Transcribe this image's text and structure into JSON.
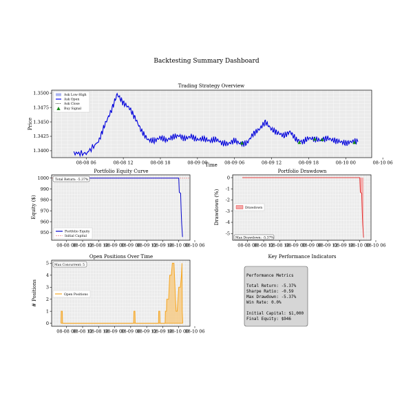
{
  "suptitle": "Backtesting Summary Dashboard",
  "colors": {
    "price": "#0000ee",
    "price_band": "#aab4f0",
    "buy": "#1a8a1a",
    "equity": "#0000cc",
    "initial_capital": "#f0a0a0",
    "drawdown_fill": "#f4a8a8",
    "drawdown_line": "#e02020",
    "positions": "#f5a623",
    "positions_fill": "#f7c77a",
    "grid": "#ffffff",
    "panel_bg": "#ebebeb"
  },
  "chart_data": [
    {
      "id": "price",
      "type": "line",
      "title": "Trading Strategy Overview",
      "xlabel": "Time",
      "ylabel": "Price",
      "ylim": [
        1.3388,
        1.3505
      ],
      "yticks": [
        "1.3400",
        "1.3425",
        "1.3450",
        "1.3475",
        "1.3500"
      ],
      "ytick_values": [
        1.34,
        1.3425,
        1.345,
        1.3475,
        1.35
      ],
      "xticks": [
        "08-08 06",
        "08-08 12",
        "08-08 18",
        "08-09 00",
        "08-09 06",
        "08-09 12",
        "08-09 18",
        "08-10 00",
        "08-10 06"
      ],
      "xlim": [
        4.4,
        56.2
      ],
      "grid": true,
      "legend_position": "upper-left",
      "legend": [
        "Ask Low-High",
        "Ask Open",
        "Ask Close",
        "Buy Signal"
      ],
      "series": [
        {
          "name": "Ask Open",
          "x": [
            8,
            10,
            12,
            13,
            14,
            15,
            16,
            17,
            18,
            19,
            20,
            21,
            22,
            23,
            24,
            25,
            26,
            27,
            28,
            29,
            30,
            31,
            32,
            33,
            34,
            35,
            36,
            37,
            38,
            39,
            40,
            41,
            42,
            43,
            44,
            45,
            46,
            47,
            48,
            49,
            50,
            51,
            52,
            53,
            54
          ],
          "values": [
            1.3396,
            1.3395,
            1.3416,
            1.3445,
            1.3468,
            1.3498,
            1.3483,
            1.3474,
            1.3455,
            1.3433,
            1.3419,
            1.3417,
            1.3423,
            1.3418,
            1.3424,
            1.3426,
            1.3421,
            1.3425,
            1.3419,
            1.3421,
            1.3417,
            1.342,
            1.3413,
            1.3412,
            1.3418,
            1.3412,
            1.3413,
            1.3429,
            1.3437,
            1.345,
            1.3437,
            1.3431,
            1.3426,
            1.3433,
            1.3419,
            1.3415,
            1.3422,
            1.342,
            1.3418,
            1.3422,
            1.3418,
            1.3416,
            1.3413,
            1.3416,
            1.3416
          ]
        }
      ],
      "buy_signals": {
        "x": [
          35.2,
          44.5,
          47.0,
          48.2,
          53.4
        ],
        "values": [
          1.3413,
          1.3414,
          1.342,
          1.3419,
          1.3414
        ]
      }
    },
    {
      "id": "equity",
      "type": "line",
      "title": "Portfolio Equity Curve",
      "xlabel": "",
      "ylabel": "Equity ($)",
      "ylim": [
        943,
        1003
      ],
      "yticks": [
        "950",
        "960",
        "970",
        "980",
        "990",
        "1000"
      ],
      "ytick_values": [
        950,
        960,
        970,
        980,
        990,
        1000
      ],
      "xticks": [
        "08-08 06",
        "08-08 12",
        "08-08 18",
        "08-09 00",
        "08-09 06",
        "08-09 12",
        "08-09 18",
        "08-10 00",
        "08-10 06"
      ],
      "xlim": [
        4.4,
        56.2
      ],
      "annotation": "Total Return: -5.37%",
      "legend_position": "lower-left",
      "legend": [
        "Portfolio Equity",
        "Initial Capital"
      ],
      "initial_capital": 1000,
      "series": [
        {
          "name": "Portfolio Equity",
          "x": [
            8,
            52.0,
            52.2,
            52.7,
            52.9,
            53.1,
            53.4
          ],
          "values": [
            1000,
            1000,
            987,
            986,
            970,
            958,
            946
          ]
        }
      ]
    },
    {
      "id": "drawdown",
      "type": "area",
      "title": "Portfolio Drawdown",
      "xlabel": "",
      "ylabel": "Drawdown (%)",
      "ylim": [
        -5.6,
        0.25
      ],
      "yticks": [
        "0",
        "-1",
        "-2",
        "-3",
        "-4",
        "-5"
      ],
      "ytick_values": [
        0,
        -1,
        -2,
        -3,
        -4,
        -5
      ],
      "xticks": [
        "08-08 06",
        "08-08 12",
        "08-08 18",
        "08-09 00",
        "08-09 06",
        "08-09 12",
        "08-09 18",
        "08-10 00",
        "08-10 06"
      ],
      "xlim": [
        4.4,
        56.2
      ],
      "annotation": "Max Drawdown: -5.37%",
      "legend_position": "center-left",
      "legend": [
        "Drawdown"
      ],
      "series": [
        {
          "name": "Drawdown",
          "x": [
            8,
            52.0,
            52.2,
            52.7,
            52.9,
            53.1,
            53.4
          ],
          "values": [
            0,
            0,
            -1.3,
            -1.4,
            -3.0,
            -4.2,
            -5.37
          ]
        }
      ]
    },
    {
      "id": "positions",
      "type": "area",
      "title": "Open Positions Over Time",
      "xlabel": "",
      "ylabel": "# Positions",
      "ylim": [
        -0.25,
        5.25
      ],
      "yticks": [
        "0",
        "1",
        "2",
        "3",
        "4",
        "5"
      ],
      "ytick_values": [
        0,
        1,
        2,
        3,
        4,
        5
      ],
      "xticks": [
        "08-08 06",
        "08-08 12",
        "08-08 18",
        "08-09 00",
        "08-09 06",
        "08-09 12",
        "08-09 18",
        "08-10 00",
        "08-10 06"
      ],
      "xlim": [
        4.4,
        56.2
      ],
      "annotation": "Max Concurrent: 5",
      "legend_position": "center-left",
      "legend": [
        "Open Positions"
      ],
      "series": [
        {
          "name": "Open Positions",
          "x": [
            7.9,
            8.0,
            8.4,
            8.5,
            35.1,
            35.2,
            35.6,
            35.7,
            44.4,
            44.5,
            44.9,
            45.0,
            46.9,
            47.0,
            47.4,
            47.5,
            48.2,
            48.6,
            49.2,
            49.6,
            50.2,
            51.0,
            51.4,
            52.0,
            52.6,
            53.0,
            53.2,
            53.3,
            53.5
          ],
          "values": [
            0,
            1,
            1,
            0,
            0,
            1,
            1,
            0,
            0,
            1,
            1,
            0,
            0,
            1,
            1,
            2,
            2,
            4,
            4,
            5,
            5,
            1,
            1,
            3,
            3,
            4,
            5,
            1,
            0
          ]
        }
      ]
    }
  ],
  "kpi": {
    "title": "Key Performance Indicators",
    "box_title": "Performance Metrics",
    "lines": [
      "Total Return: -5.37%",
      "Sharpe Ratio: -0.59",
      "Max Drawdown: -5.37%",
      "Win Rate: 0.0%",
      "",
      "Initial Capital: $1,000",
      "Final Equity: $946"
    ]
  }
}
